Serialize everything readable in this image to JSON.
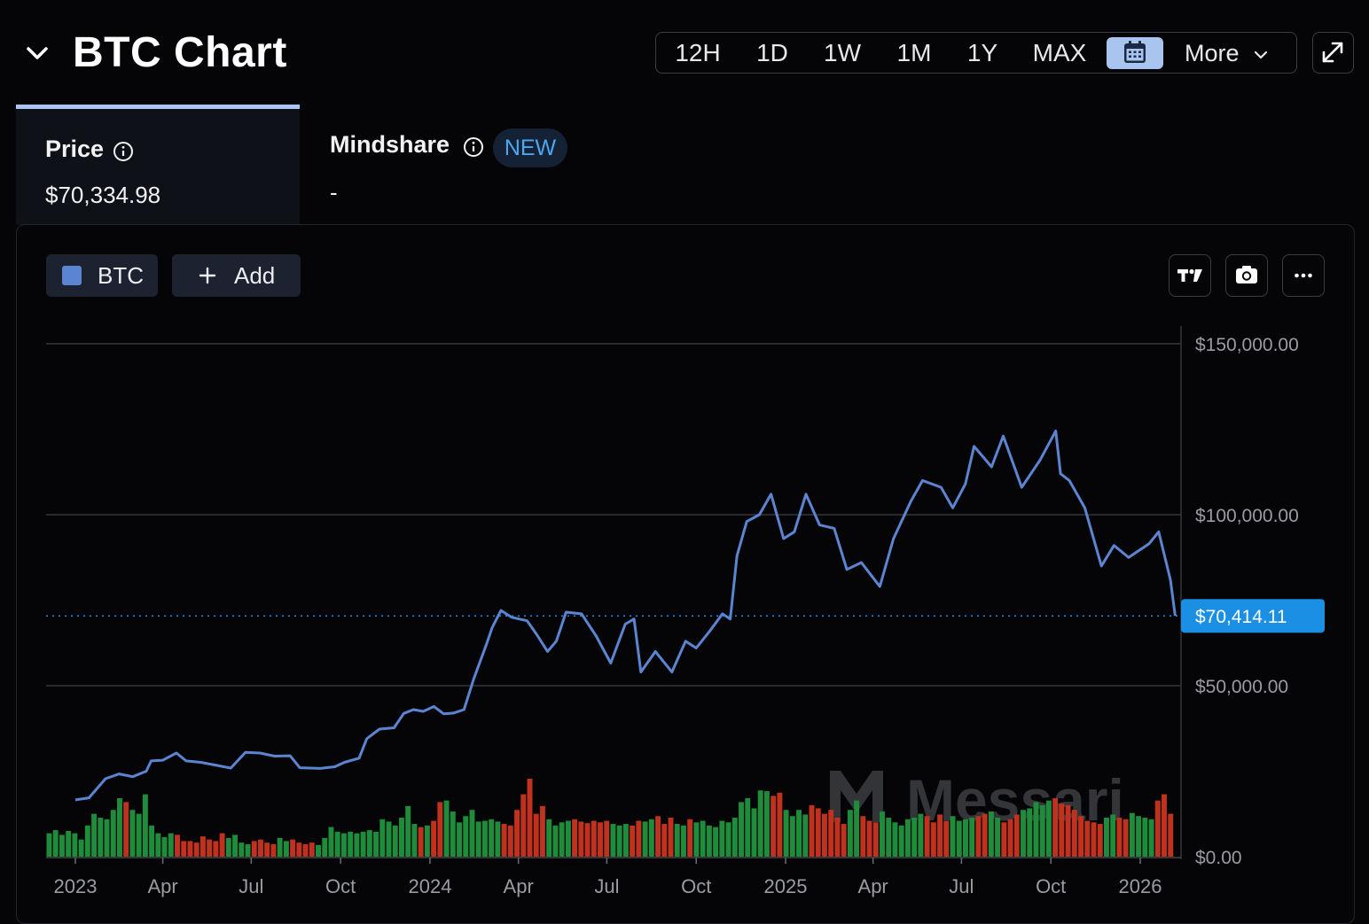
{
  "header": {
    "title": "BTC Chart",
    "ranges": [
      "12H",
      "1D",
      "1W",
      "1M",
      "1Y",
      "MAX"
    ],
    "calendar_icon": "calendar-icon",
    "more_label": "More"
  },
  "tabs": {
    "price_label": "Price",
    "price_value": "$70,334.98",
    "mindshare_label": "Mindshare",
    "mindshare_badge": "NEW",
    "mindshare_value": "-"
  },
  "series_chips": {
    "btc_label": "BTC",
    "add_label": "Add"
  },
  "colors": {
    "line": "#5b84d1",
    "current_price": "#1a8fe3",
    "volume_up": "#1e8c3a",
    "volume_down": "#c0321e",
    "tab_accent": "#a9c4ef"
  },
  "watermark": "Messari",
  "chart_data": {
    "type": "line",
    "series": [
      {
        "name": "BTC"
      }
    ],
    "ylim": [
      0,
      150000
    ],
    "y_ticks": [
      "$150,000.00",
      "$100,000.00",
      "$50,000.00",
      "$0.00"
    ],
    "x_ticks": [
      "2023",
      "Apr",
      "Jul",
      "Oct",
      "2024",
      "Apr",
      "Jul",
      "Oct",
      "2025",
      "Apr",
      "Jul",
      "Oct",
      "2026"
    ],
    "current_price_label": "$70,414.11",
    "current_price": 70414.11,
    "price_points": [
      [
        "2023-01-01",
        16600
      ],
      [
        "2023-01-15",
        17200
      ],
      [
        "2023-02-01",
        22800
      ],
      [
        "2023-02-15",
        24200
      ],
      [
        "2023-03-01",
        23400
      ],
      [
        "2023-03-15",
        25000
      ],
      [
        "2023-03-20",
        28000
      ],
      [
        "2023-04-01",
        28200
      ],
      [
        "2023-04-15",
        30300
      ],
      [
        "2023-04-25",
        28000
      ],
      [
        "2023-05-10",
        27600
      ],
      [
        "2023-05-25",
        26800
      ],
      [
        "2023-06-10",
        25900
      ],
      [
        "2023-06-25",
        30500
      ],
      [
        "2023-07-10",
        30300
      ],
      [
        "2023-07-25",
        29400
      ],
      [
        "2023-08-10",
        29500
      ],
      [
        "2023-08-20",
        26000
      ],
      [
        "2023-09-10",
        25800
      ],
      [
        "2023-09-25",
        26300
      ],
      [
        "2023-10-05",
        27600
      ],
      [
        "2023-10-20",
        28800
      ],
      [
        "2023-10-28",
        34500
      ],
      [
        "2023-11-10",
        37300
      ],
      [
        "2023-11-25",
        37700
      ],
      [
        "2023-12-05",
        41900
      ],
      [
        "2023-12-15",
        43000
      ],
      [
        "2023-12-25",
        42500
      ],
      [
        "2024-01-05",
        43900
      ],
      [
        "2024-01-15",
        41800
      ],
      [
        "2024-01-25",
        42000
      ],
      [
        "2024-02-05",
        43000
      ],
      [
        "2024-02-15",
        52000
      ],
      [
        "2024-02-28",
        62000
      ],
      [
        "2024-03-05",
        67000
      ],
      [
        "2024-03-14",
        72000
      ],
      [
        "2024-03-25",
        70000
      ],
      [
        "2024-04-10",
        69000
      ],
      [
        "2024-04-20",
        64900
      ],
      [
        "2024-05-01",
        60000
      ],
      [
        "2024-05-10",
        63000
      ],
      [
        "2024-05-20",
        71500
      ],
      [
        "2024-06-05",
        71000
      ],
      [
        "2024-06-20",
        64500
      ],
      [
        "2024-07-05",
        56600
      ],
      [
        "2024-07-20",
        68000
      ],
      [
        "2024-07-29",
        69500
      ],
      [
        "2024-08-05",
        54000
      ],
      [
        "2024-08-20",
        60000
      ],
      [
        "2024-09-06",
        54000
      ],
      [
        "2024-09-20",
        63000
      ],
      [
        "2024-10-01",
        61000
      ],
      [
        "2024-10-15",
        66000
      ],
      [
        "2024-10-28",
        71000
      ],
      [
        "2024-11-05",
        69500
      ],
      [
        "2024-11-12",
        88000
      ],
      [
        "2024-11-22",
        98000
      ],
      [
        "2024-12-05",
        100000
      ],
      [
        "2024-12-17",
        106000
      ],
      [
        "2024-12-30",
        93000
      ],
      [
        "2025-01-10",
        95000
      ],
      [
        "2025-01-22",
        106000
      ],
      [
        "2025-02-05",
        97000
      ],
      [
        "2025-02-20",
        96000
      ],
      [
        "2025-03-05",
        84000
      ],
      [
        "2025-03-20",
        86000
      ],
      [
        "2025-04-08",
        79000
      ],
      [
        "2025-04-22",
        93000
      ],
      [
        "2025-05-10",
        104000
      ],
      [
        "2025-05-22",
        110000
      ],
      [
        "2025-06-10",
        108000
      ],
      [
        "2025-06-22",
        102000
      ],
      [
        "2025-07-05",
        109000
      ],
      [
        "2025-07-14",
        120000
      ],
      [
        "2025-08-01",
        114000
      ],
      [
        "2025-08-13",
        123000
      ],
      [
        "2025-09-01",
        108000
      ],
      [
        "2025-09-20",
        116000
      ],
      [
        "2025-10-06",
        124500
      ],
      [
        "2025-10-11",
        112000
      ],
      [
        "2025-10-20",
        110000
      ],
      [
        "2025-11-05",
        102000
      ],
      [
        "2025-11-22",
        85000
      ],
      [
        "2025-12-05",
        91000
      ],
      [
        "2025-12-20",
        87500
      ],
      [
        "2026-01-10",
        91500
      ],
      [
        "2026-01-20",
        95000
      ],
      [
        "2026-02-01",
        81000
      ],
      [
        "2026-02-06",
        70414
      ]
    ],
    "volume_relative": [
      0.3,
      0.34,
      0.28,
      0.33,
      0.3,
      0.22,
      0.4,
      0.55,
      0.5,
      0.48,
      0.6,
      0.75,
      0.7,
      0.6,
      0.55,
      0.8,
      0.4,
      0.3,
      0.25,
      0.3,
      0.28,
      0.2,
      0.2,
      0.18,
      0.26,
      0.22,
      0.2,
      0.3,
      0.24,
      0.28,
      0.18,
      0.16,
      0.2,
      0.22,
      0.18,
      0.16,
      0.24,
      0.2,
      0.22,
      0.18,
      0.16,
      0.18,
      0.15,
      0.24,
      0.38,
      0.32,
      0.3,
      0.32,
      0.3,
      0.32,
      0.34,
      0.32,
      0.48,
      0.45,
      0.4,
      0.5,
      0.65,
      0.42,
      0.38,
      0.4,
      0.46,
      0.7,
      0.72,
      0.58,
      0.44,
      0.52,
      0.6,
      0.45,
      0.46,
      0.48,
      0.45,
      0.42,
      0.4,
      0.6,
      0.8,
      1.0,
      0.55,
      0.65,
      0.48,
      0.4,
      0.44,
      0.46,
      0.48,
      0.45,
      0.43,
      0.46,
      0.44,
      0.46,
      0.42,
      0.4,
      0.42,
      0.4,
      0.46,
      0.45,
      0.48,
      0.52,
      0.42,
      0.5,
      0.42,
      0.4,
      0.48,
      0.44,
      0.46,
      0.4,
      0.38,
      0.46,
      0.44,
      0.5,
      0.7,
      0.75,
      0.62,
      0.85,
      0.84,
      0.78,
      0.82,
      0.6,
      0.52,
      0.6,
      0.54,
      0.66,
      0.62,
      0.55,
      0.6,
      0.5,
      0.42,
      0.6,
      0.72,
      0.52,
      0.46,
      0.44,
      0.58,
      0.5,
      0.44,
      0.4,
      0.48,
      0.5,
      0.55,
      0.52,
      0.44,
      0.54,
      0.46,
      0.52,
      0.46,
      0.48,
      0.5,
      0.52,
      0.55,
      0.58,
      0.5,
      0.44,
      0.48,
      0.54,
      0.6,
      0.62,
      0.7,
      0.66,
      0.72,
      0.75,
      0.68,
      0.66,
      0.6,
      0.52,
      0.46,
      0.44,
      0.42,
      0.5,
      0.54,
      0.5,
      0.48,
      0.56,
      0.52,
      0.5,
      0.48,
      0.72,
      0.8,
      0.55
    ]
  }
}
